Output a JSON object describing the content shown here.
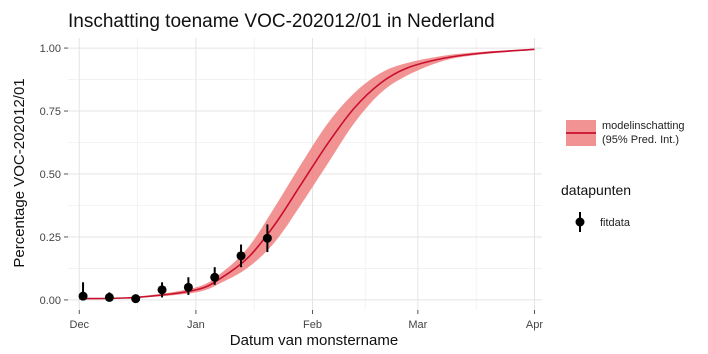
{
  "chart_data": {
    "type": "line",
    "title": "Inschatting toename VOC-202012/01 in Nederland",
    "xlabel": "Datum van monstername",
    "ylabel": "Percentage VOC-202012/01",
    "x_axis": {
      "type": "date",
      "range": [
        "2020-11-28",
        "2021-04-03"
      ],
      "ticks": [
        {
          "date": "2020-12-01",
          "label": "Dec"
        },
        {
          "date": "2021-01-01",
          "label": "Jan"
        },
        {
          "date": "2021-02-01",
          "label": "Feb"
        },
        {
          "date": "2021-03-01",
          "label": "Mar"
        },
        {
          "date": "2021-04-01",
          "label": "Apr"
        }
      ]
    },
    "y_axis": {
      "range": [
        -0.04,
        1.04
      ],
      "ticks": [
        0.0,
        0.25,
        0.5,
        0.75,
        1.0
      ],
      "tick_labels": [
        "0.00",
        "0.25",
        "0.50",
        "0.75",
        "1.00"
      ]
    },
    "grid": true,
    "legend_placement": "right",
    "model": {
      "legend_label_line1": "modelinschatting",
      "legend_label_line2": "(95% Pred. Int.)",
      "line_color": "#c8102e",
      "band_color": "#f08080",
      "x": [
        "2020-12-01",
        "2020-12-16",
        "2021-01-01",
        "2021-01-08",
        "2021-01-15",
        "2021-01-22",
        "2021-01-29",
        "2021-02-05",
        "2021-02-12",
        "2021-02-19",
        "2021-02-26",
        "2021-03-08",
        "2021-03-18",
        "2021-04-01"
      ],
      "y": [
        0.005,
        0.01,
        0.04,
        0.09,
        0.17,
        0.3,
        0.46,
        0.62,
        0.76,
        0.86,
        0.92,
        0.96,
        0.98,
        0.995
      ],
      "lower": [
        0.004,
        0.008,
        0.03,
        0.07,
        0.13,
        0.23,
        0.38,
        0.54,
        0.7,
        0.82,
        0.89,
        0.95,
        0.975,
        0.993
      ],
      "upper": [
        0.006,
        0.013,
        0.05,
        0.11,
        0.21,
        0.37,
        0.54,
        0.7,
        0.82,
        0.9,
        0.94,
        0.97,
        0.985,
        0.997
      ]
    },
    "datapoints": {
      "legend_title": "datapunten",
      "legend_label": "fitdata",
      "color": "#000000",
      "points": [
        {
          "x": "2020-12-02",
          "y": 0.015,
          "lo": 0.0,
          "hi": 0.07
        },
        {
          "x": "2020-12-09",
          "y": 0.01,
          "lo": 0.0,
          "hi": 0.03
        },
        {
          "x": "2020-12-16",
          "y": 0.005,
          "lo": 0.0,
          "hi": 0.02
        },
        {
          "x": "2020-12-23",
          "y": 0.04,
          "lo": 0.01,
          "hi": 0.07
        },
        {
          "x": "2020-12-30",
          "y": 0.05,
          "lo": 0.02,
          "hi": 0.09
        },
        {
          "x": "2021-01-06",
          "y": 0.09,
          "lo": 0.06,
          "hi": 0.13
        },
        {
          "x": "2021-01-13",
          "y": 0.175,
          "lo": 0.13,
          "hi": 0.22
        },
        {
          "x": "2021-01-20",
          "y": 0.245,
          "lo": 0.19,
          "hi": 0.3
        }
      ]
    }
  }
}
